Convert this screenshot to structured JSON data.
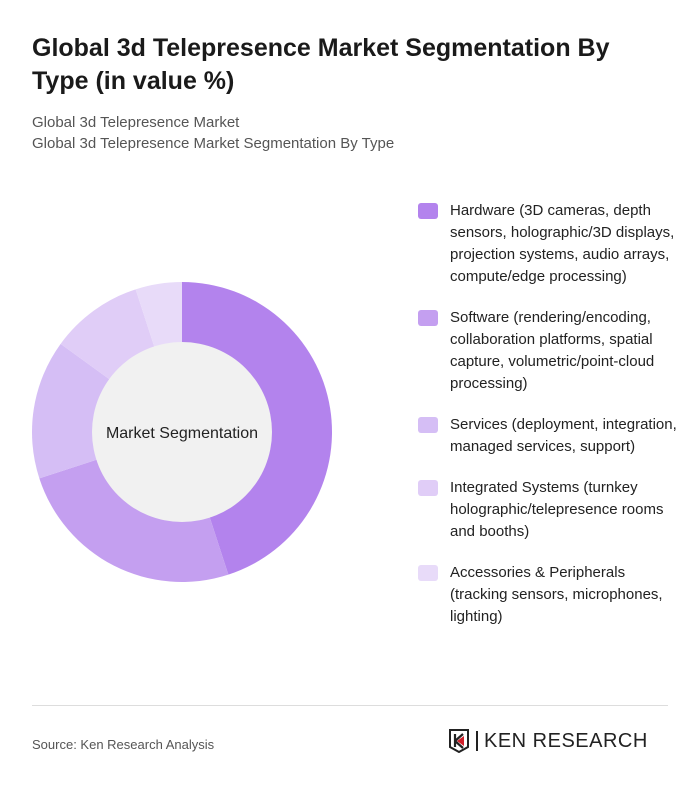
{
  "title": "Global 3d Telepresence Market Segmentation By Type (in value %)",
  "subtitle1": "Global 3d Telepresence Market",
  "subtitle2": "Global 3d Telepresence Market Segmentation By Type",
  "source": "Source: Ken Research Analysis",
  "logo_text": "KEN RESEARCH",
  "chart_data": {
    "type": "pie",
    "donut": true,
    "center_label": "Market Segmentation",
    "legend_position": "right",
    "categories": [
      "Hardware (3D cameras, depth sensors, holographic/3D displays, projection systems, audio arrays, compute/edge processing)",
      "Software (rendering/encoding, collaboration platforms, spatial capture, volumetric/point-cloud processing)",
      "Services (deployment, integration, managed services, support)",
      "Integrated Systems (turnkey holographic/telepresence rooms and booths)",
      "Accessories & Peripherals (tracking sensors, microphones, lighting)"
    ],
    "values": [
      45,
      25,
      15,
      10,
      5
    ],
    "colors": [
      "#b383ed",
      "#c49ff0",
      "#d5bef5",
      "#e0cdf7",
      "#e8dbf9"
    ]
  }
}
